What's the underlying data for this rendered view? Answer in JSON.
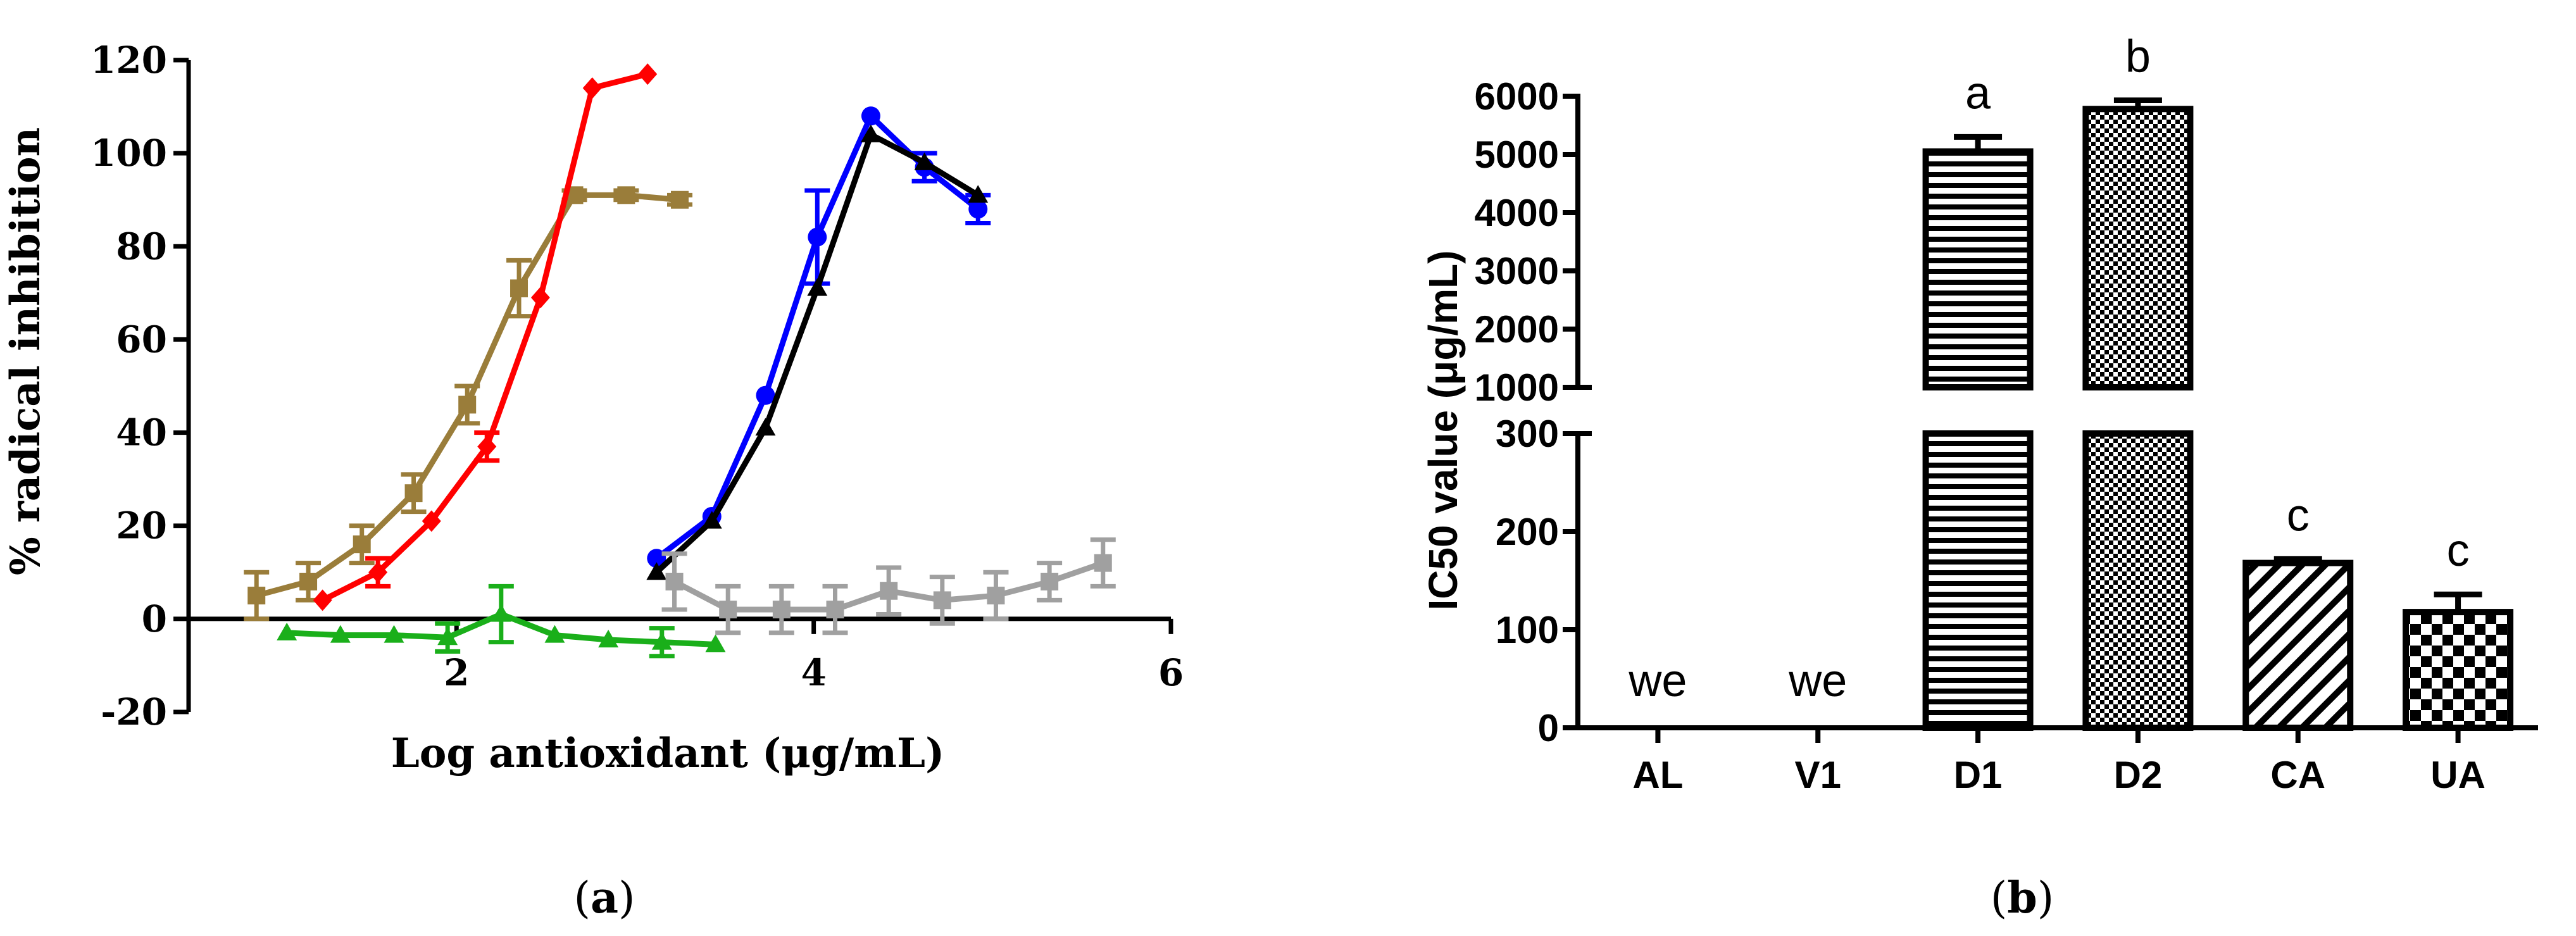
{
  "chart_data": [
    {
      "panel": "a",
      "type": "line",
      "panel_label": "a",
      "xlabel": "Log antioxidant (μg/mL)",
      "ylabel": "% radical inhibition",
      "xlim": [
        0.5,
        6
      ],
      "ylim": [
        -20,
        120
      ],
      "x_ticks": [
        2,
        4,
        6
      ],
      "y_ticks": [
        -20,
        0,
        20,
        40,
        60,
        80,
        100,
        120
      ],
      "series": [
        {
          "color": "#9a7d3a",
          "marker": "square",
          "x": [
            0.88,
            1.17,
            1.47,
            1.76,
            2.06,
            2.35,
            2.66,
            2.95,
            3.25
          ],
          "y": [
            5,
            8,
            16,
            27,
            46,
            71,
            91,
            91,
            90
          ],
          "err": [
            5,
            4,
            4,
            4,
            4,
            6,
            1,
            1,
            1
          ]
        },
        {
          "color": "#ff0000",
          "marker": "diamond",
          "x": [
            1.25,
            1.56,
            1.86,
            2.17,
            2.47,
            2.76,
            3.07
          ],
          "y": [
            4,
            10,
            21,
            37,
            69,
            114,
            117
          ],
          "err": [
            0,
            3,
            0,
            3,
            0,
            0,
            0
          ]
        },
        {
          "color": "#1aaf1a",
          "marker": "triangle",
          "x": [
            1.05,
            1.35,
            1.65,
            1.95,
            2.25,
            2.55,
            2.85,
            3.15,
            3.45
          ],
          "y": [
            -3,
            -3.5,
            -3.5,
            -4,
            1,
            -3.5,
            -4.5,
            -5,
            -5.5
          ],
          "err": [
            0,
            0,
            0,
            3,
            6,
            0,
            0,
            3,
            0
          ]
        },
        {
          "color": "#0000ff",
          "marker": "circle",
          "x": [
            3.12,
            3.43,
            3.73,
            4.02,
            4.32,
            4.62,
            4.92
          ],
          "y": [
            13,
            22,
            48,
            82,
            108,
            97,
            88
          ],
          "err": [
            0,
            0,
            0,
            10,
            0,
            3,
            3
          ]
        },
        {
          "color": "#000000",
          "marker": "triangle",
          "x": [
            3.12,
            3.43,
            3.73,
            4.02,
            4.32,
            4.62,
            4.92
          ],
          "y": [
            10,
            21,
            41,
            71,
            104,
            98,
            91
          ],
          "err": [
            0,
            0,
            0,
            0,
            0,
            0,
            0
          ]
        },
        {
          "color": "#a0a0a0",
          "marker": "square",
          "x": [
            3.22,
            3.52,
            3.82,
            4.12,
            4.42,
            4.72,
            5.02,
            5.32,
            5.62
          ],
          "y": [
            8,
            2,
            2,
            2,
            6,
            4,
            5,
            8,
            12
          ],
          "err": [
            6,
            5,
            5,
            5,
            5,
            5,
            5,
            4,
            5
          ]
        }
      ]
    },
    {
      "panel": "b",
      "type": "bar",
      "panel_label": "b",
      "xlabel": "",
      "ylabel": "IC50 value (μg/mL)",
      "categories": [
        "AL",
        "V1",
        "D1",
        "D2",
        "CA",
        "UA"
      ],
      "values": [
        0,
        0,
        5050,
        5780,
        168,
        118
      ],
      "errors": [
        0,
        0,
        250,
        150,
        4,
        18
      ],
      "patterns": [
        "none",
        "none",
        "horizontal-lines",
        "checker-fine",
        "diagonal-lines",
        "checker"
      ],
      "annotations": [
        "we",
        "we",
        "a",
        "b",
        "c",
        "c"
      ],
      "y_axis_break": {
        "lower_range": [
          0,
          300
        ],
        "upper_range": [
          1000,
          6000
        ]
      },
      "lower_ticks": [
        0,
        100,
        200,
        300
      ],
      "upper_ticks": [
        1000,
        2000,
        3000,
        4000,
        5000,
        6000
      ]
    }
  ]
}
